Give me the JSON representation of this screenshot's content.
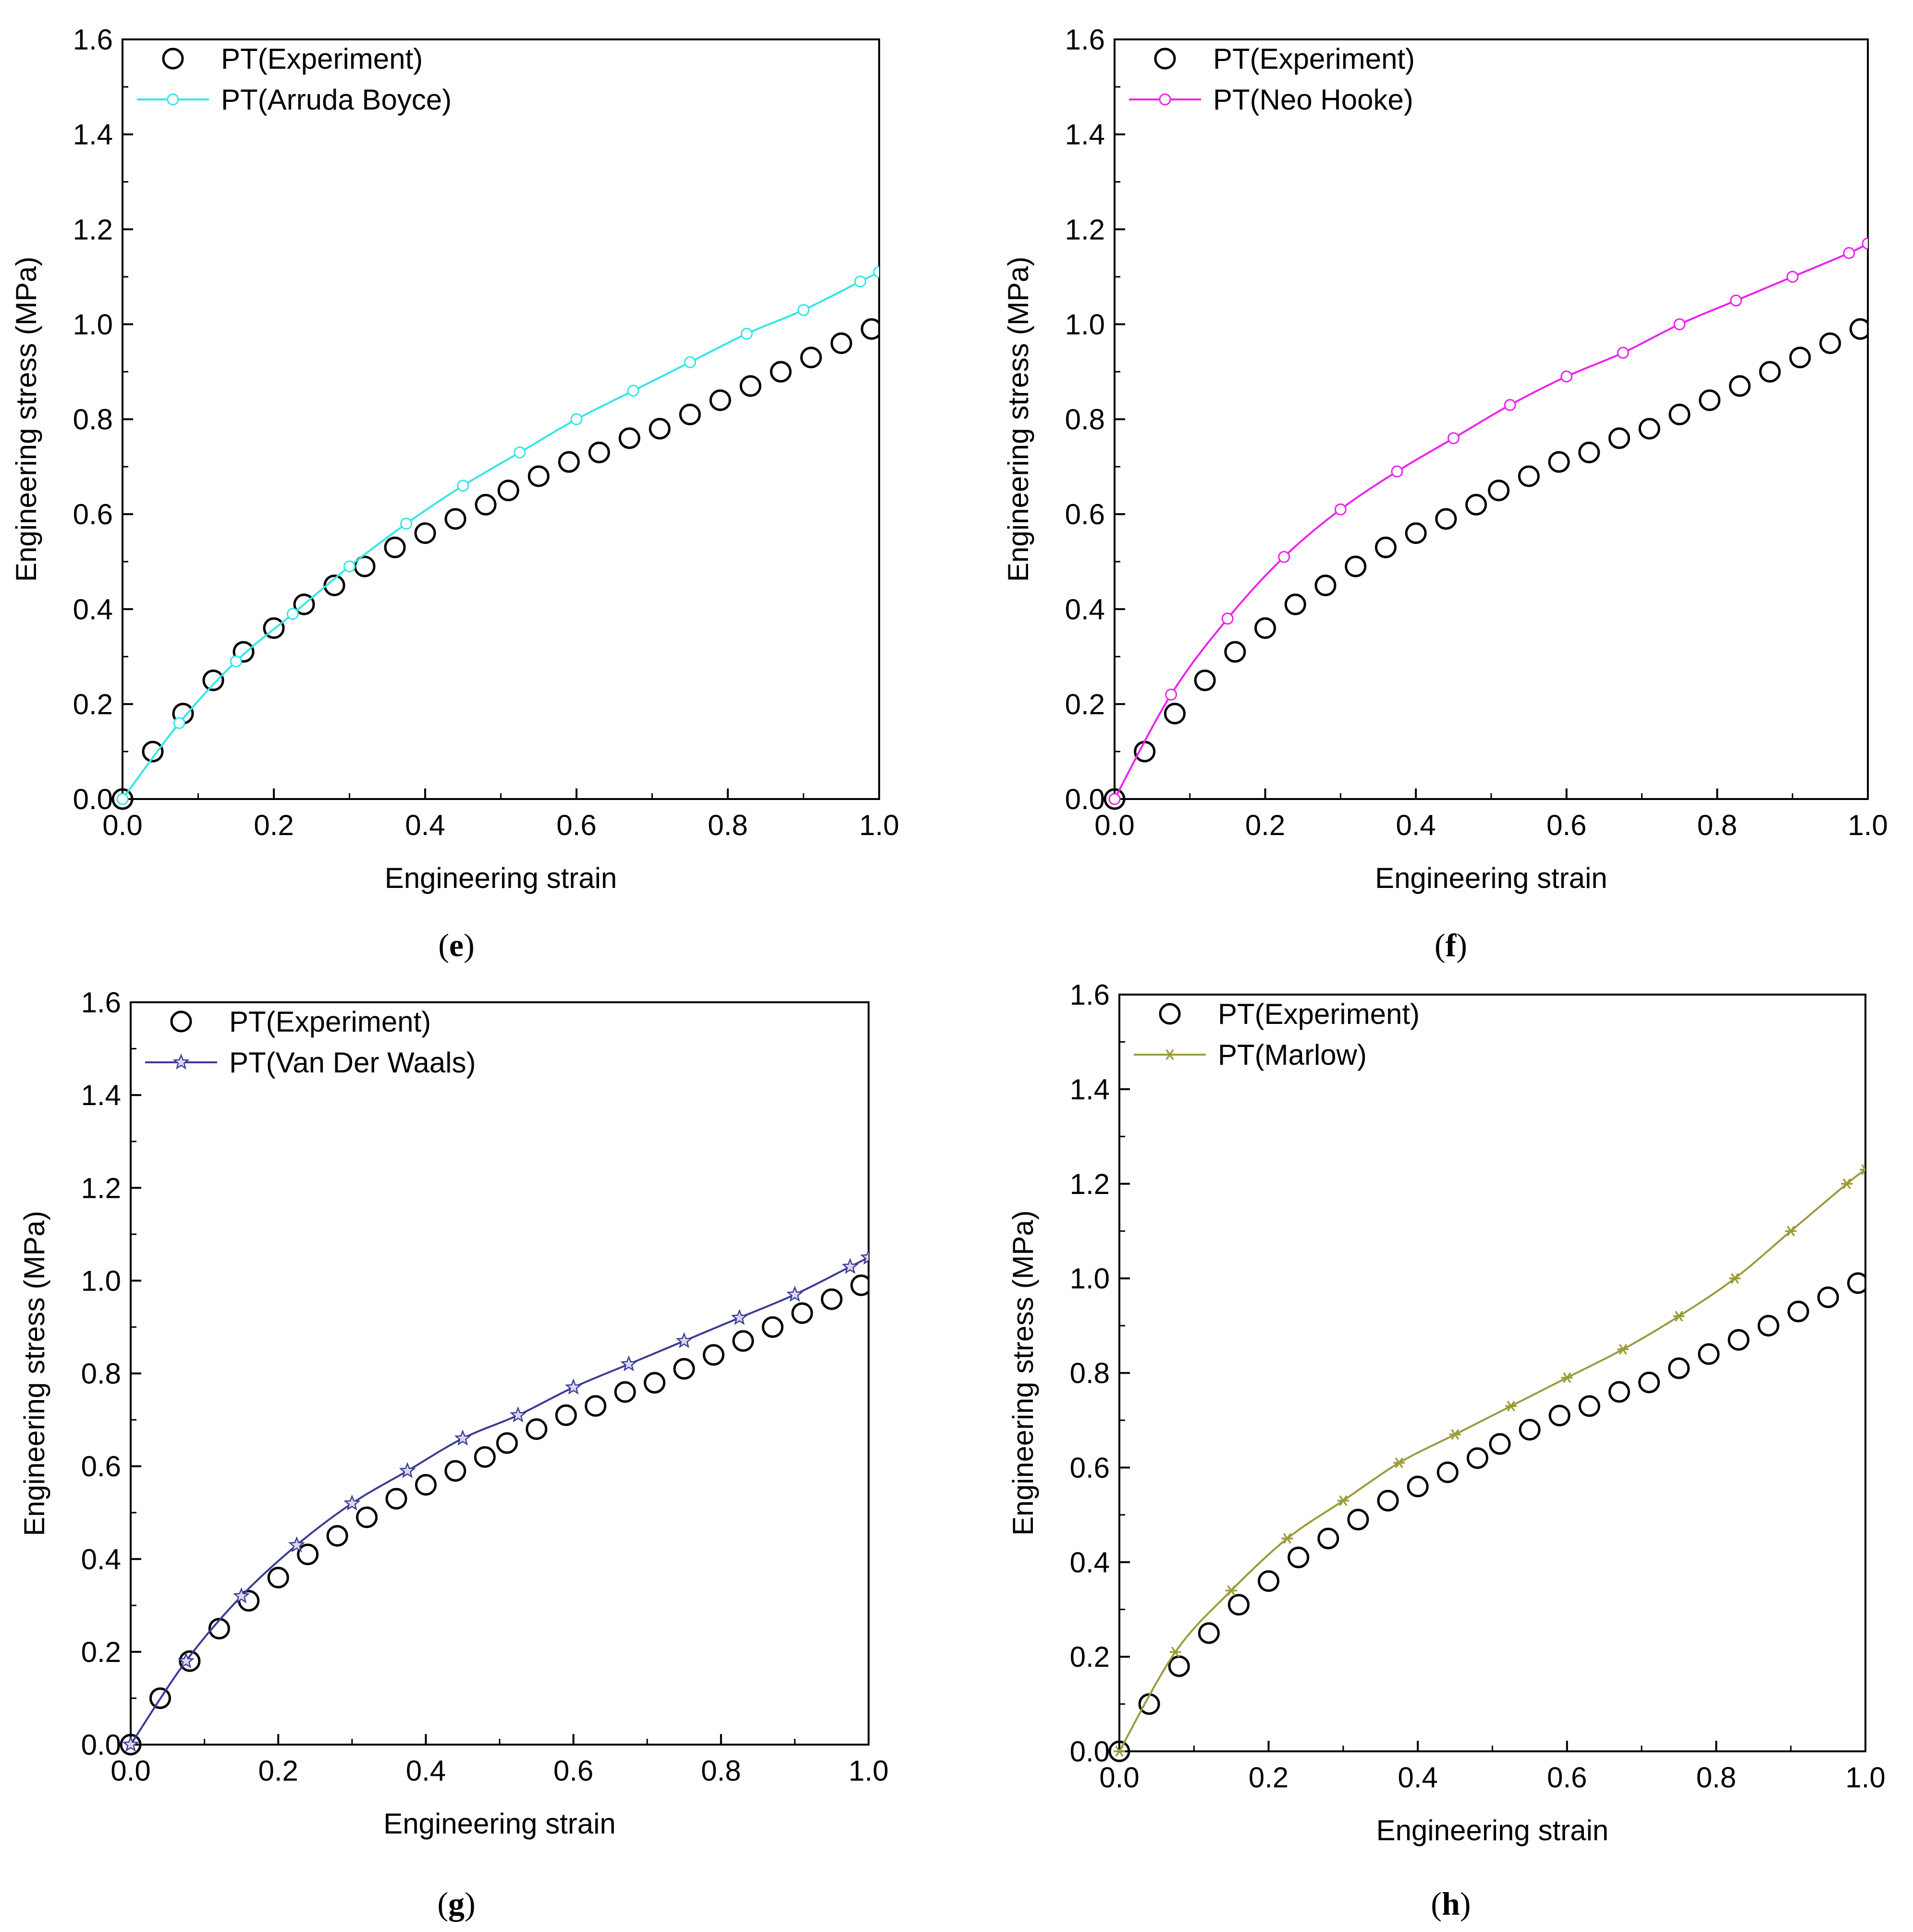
{
  "figure": {
    "panels": [
      "e",
      "f",
      "g",
      "h"
    ]
  },
  "chart_data": [
    {
      "panel": "e",
      "type": "line",
      "title": "",
      "xlabel": "Engineering strain",
      "ylabel": "Engineering stress (MPa)",
      "xlim": [
        0,
        1.0
      ],
      "ylim": [
        0,
        1.6
      ],
      "xticks": [
        "0.0",
        "0.2",
        "0.4",
        "0.6",
        "0.8",
        "1.0"
      ],
      "yticks": [
        "0.0",
        "0.2",
        "0.4",
        "0.6",
        "0.8",
        "1.0",
        "1.2",
        "1.4",
        "1.6"
      ],
      "legend_position": "top-left",
      "series": [
        {
          "name": "PT(Experiment)",
          "style": "open-circle",
          "color": "#000000",
          "x": [
            0.0,
            0.04,
            0.08,
            0.12,
            0.16,
            0.2,
            0.24,
            0.28,
            0.32,
            0.36,
            0.4,
            0.44,
            0.48,
            0.51,
            0.55,
            0.59,
            0.63,
            0.67,
            0.71,
            0.75,
            0.79,
            0.83,
            0.87,
            0.91,
            0.95,
            0.99
          ],
          "y": [
            0.0,
            0.1,
            0.18,
            0.25,
            0.31,
            0.36,
            0.41,
            0.45,
            0.49,
            0.53,
            0.56,
            0.59,
            0.62,
            0.65,
            0.68,
            0.71,
            0.73,
            0.76,
            0.78,
            0.81,
            0.84,
            0.87,
            0.9,
            0.93,
            0.96,
            0.99
          ]
        },
        {
          "name": "PT(Arruda Boyce)",
          "style": "line-open-circle",
          "color": "#33e6e6",
          "x": [
            0.0,
            0.075,
            0.15,
            0.225,
            0.3,
            0.375,
            0.45,
            0.525,
            0.6,
            0.675,
            0.75,
            0.825,
            0.9,
            0.975,
            1.0
          ],
          "y": [
            0.0,
            0.16,
            0.29,
            0.39,
            0.49,
            0.58,
            0.66,
            0.73,
            0.8,
            0.86,
            0.92,
            0.98,
            1.03,
            1.09,
            1.11
          ]
        }
      ]
    },
    {
      "panel": "f",
      "type": "line",
      "title": "",
      "xlabel": "Engineering strain",
      "ylabel": "Engineering stress (MPa)",
      "xlim": [
        0,
        1.0
      ],
      "ylim": [
        0,
        1.6
      ],
      "xticks": [
        "0.0",
        "0.2",
        "0.4",
        "0.6",
        "0.8",
        "1.0"
      ],
      "yticks": [
        "0.0",
        "0.2",
        "0.4",
        "0.6",
        "0.8",
        "1.0",
        "1.2",
        "1.4",
        "1.6"
      ],
      "legend_position": "top-left",
      "series": [
        {
          "name": "PT(Experiment)",
          "style": "open-circle",
          "color": "#000000",
          "x": [
            0.0,
            0.04,
            0.08,
            0.12,
            0.16,
            0.2,
            0.24,
            0.28,
            0.32,
            0.36,
            0.4,
            0.44,
            0.48,
            0.51,
            0.55,
            0.59,
            0.63,
            0.67,
            0.71,
            0.75,
            0.79,
            0.83,
            0.87,
            0.91,
            0.95,
            0.99
          ],
          "y": [
            0.0,
            0.1,
            0.18,
            0.25,
            0.31,
            0.36,
            0.41,
            0.45,
            0.49,
            0.53,
            0.56,
            0.59,
            0.62,
            0.65,
            0.68,
            0.71,
            0.73,
            0.76,
            0.78,
            0.81,
            0.84,
            0.87,
            0.9,
            0.93,
            0.96,
            0.99
          ]
        },
        {
          "name": "PT(Neo Hooke)",
          "style": "line-open-circle",
          "color": "#ee22ee",
          "x": [
            0.0,
            0.075,
            0.15,
            0.225,
            0.3,
            0.375,
            0.45,
            0.525,
            0.6,
            0.675,
            0.75,
            0.825,
            0.9,
            0.975,
            1.0
          ],
          "y": [
            0.0,
            0.22,
            0.38,
            0.51,
            0.61,
            0.69,
            0.76,
            0.83,
            0.89,
            0.94,
            1.0,
            1.05,
            1.1,
            1.15,
            1.17
          ]
        }
      ]
    },
    {
      "panel": "g",
      "type": "line",
      "title": "",
      "xlabel": "Engineering strain",
      "ylabel": "Engineering stress (MPa)",
      "xlim": [
        0,
        1.0
      ],
      "ylim": [
        0,
        1.6
      ],
      "xticks": [
        "0.0",
        "0.2",
        "0.4",
        "0.6",
        "0.8",
        "1.0"
      ],
      "yticks": [
        "0.0",
        "0.2",
        "0.4",
        "0.6",
        "0.8",
        "1.0",
        "1.2",
        "1.4",
        "1.6"
      ],
      "legend_position": "top-left",
      "series": [
        {
          "name": "PT(Experiment)",
          "style": "open-circle",
          "color": "#000000",
          "x": [
            0.0,
            0.04,
            0.08,
            0.12,
            0.16,
            0.2,
            0.24,
            0.28,
            0.32,
            0.36,
            0.4,
            0.44,
            0.48,
            0.51,
            0.55,
            0.59,
            0.63,
            0.67,
            0.71,
            0.75,
            0.79,
            0.83,
            0.87,
            0.91,
            0.95,
            0.99
          ],
          "y": [
            0.0,
            0.1,
            0.18,
            0.25,
            0.31,
            0.36,
            0.41,
            0.45,
            0.49,
            0.53,
            0.56,
            0.59,
            0.62,
            0.65,
            0.68,
            0.71,
            0.73,
            0.76,
            0.78,
            0.81,
            0.84,
            0.87,
            0.9,
            0.93,
            0.96,
            0.99
          ]
        },
        {
          "name": "PT(Van Der Waals)",
          "style": "line-star",
          "color": "#3b3b94",
          "x": [
            0.0,
            0.075,
            0.15,
            0.225,
            0.3,
            0.375,
            0.45,
            0.525,
            0.6,
            0.675,
            0.75,
            0.825,
            0.9,
            0.975,
            1.0
          ],
          "y": [
            0.0,
            0.18,
            0.32,
            0.43,
            0.52,
            0.59,
            0.66,
            0.71,
            0.77,
            0.82,
            0.87,
            0.92,
            0.97,
            1.03,
            1.05
          ]
        }
      ]
    },
    {
      "panel": "h",
      "type": "line",
      "title": "",
      "xlabel": "Engineering strain",
      "ylabel": "Engineering stress (MPa)",
      "xlim": [
        0,
        1.0
      ],
      "ylim": [
        0,
        1.6
      ],
      "xticks": [
        "0.0",
        "0.2",
        "0.4",
        "0.6",
        "0.8",
        "1.0"
      ],
      "yticks": [
        "0.0",
        "0.2",
        "0.4",
        "0.6",
        "0.8",
        "1.0",
        "1.2",
        "1.4",
        "1.6"
      ],
      "legend_position": "top-left",
      "series": [
        {
          "name": "PT(Experiment)",
          "style": "open-circle",
          "color": "#000000",
          "x": [
            0.0,
            0.04,
            0.08,
            0.12,
            0.16,
            0.2,
            0.24,
            0.28,
            0.32,
            0.36,
            0.4,
            0.44,
            0.48,
            0.51,
            0.55,
            0.59,
            0.63,
            0.67,
            0.71,
            0.75,
            0.79,
            0.83,
            0.87,
            0.91,
            0.95,
            0.99
          ],
          "y": [
            0.0,
            0.1,
            0.18,
            0.25,
            0.31,
            0.36,
            0.41,
            0.45,
            0.49,
            0.53,
            0.56,
            0.59,
            0.62,
            0.65,
            0.68,
            0.71,
            0.73,
            0.76,
            0.78,
            0.81,
            0.84,
            0.87,
            0.9,
            0.93,
            0.96,
            0.99
          ]
        },
        {
          "name": "PT(Marlow)",
          "style": "line-asterisk",
          "color": "#9b9b3a",
          "x": [
            0.0,
            0.075,
            0.15,
            0.225,
            0.3,
            0.375,
            0.45,
            0.525,
            0.6,
            0.675,
            0.75,
            0.825,
            0.9,
            0.975,
            1.0
          ],
          "y": [
            0.0,
            0.21,
            0.34,
            0.45,
            0.53,
            0.61,
            0.67,
            0.73,
            0.79,
            0.85,
            0.92,
            1.0,
            1.1,
            1.2,
            1.23
          ]
        }
      ]
    }
  ]
}
